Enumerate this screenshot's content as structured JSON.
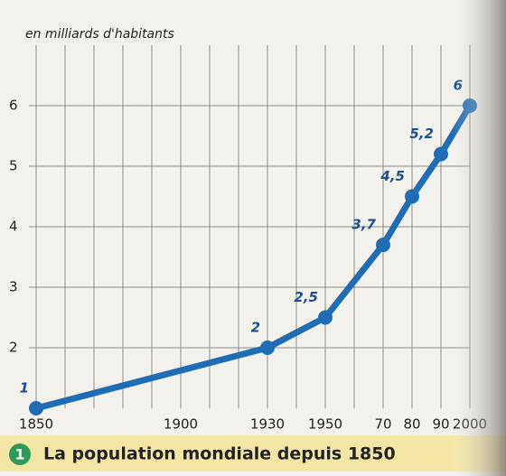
{
  "chart_data": {
    "type": "line",
    "y_axis_label": "en milliards d'habitants",
    "caption": "La population mondiale depuis 1850",
    "figure_number": "1",
    "x": [
      1850,
      1930,
      1950,
      1970,
      1980,
      1990,
      2000
    ],
    "series": [
      {
        "color": "#1f6db5",
        "values": [
          1,
          2,
          2.5,
          3.7,
          4.5,
          5.2,
          6
        ],
        "value_labels": [
          "1",
          "2",
          "2,5",
          "3,7",
          "4,5",
          "5,2",
          "6"
        ]
      }
    ],
    "xlim": [
      1850,
      2000
    ],
    "ylim": [
      1,
      7
    ],
    "xticks": [
      1850,
      1900,
      1930,
      1950,
      {
        "value": 1970,
        "label": "70"
      },
      {
        "value": 1980,
        "label": "80"
      },
      {
        "value": 1990,
        "label": "90"
      },
      2000
    ],
    "xgrid": [
      1860,
      1870,
      1880,
      1890,
      1910,
      1920,
      1940,
      1960
    ],
    "yticks": [
      2,
      3,
      4,
      5,
      6
    ],
    "grid": true
  }
}
